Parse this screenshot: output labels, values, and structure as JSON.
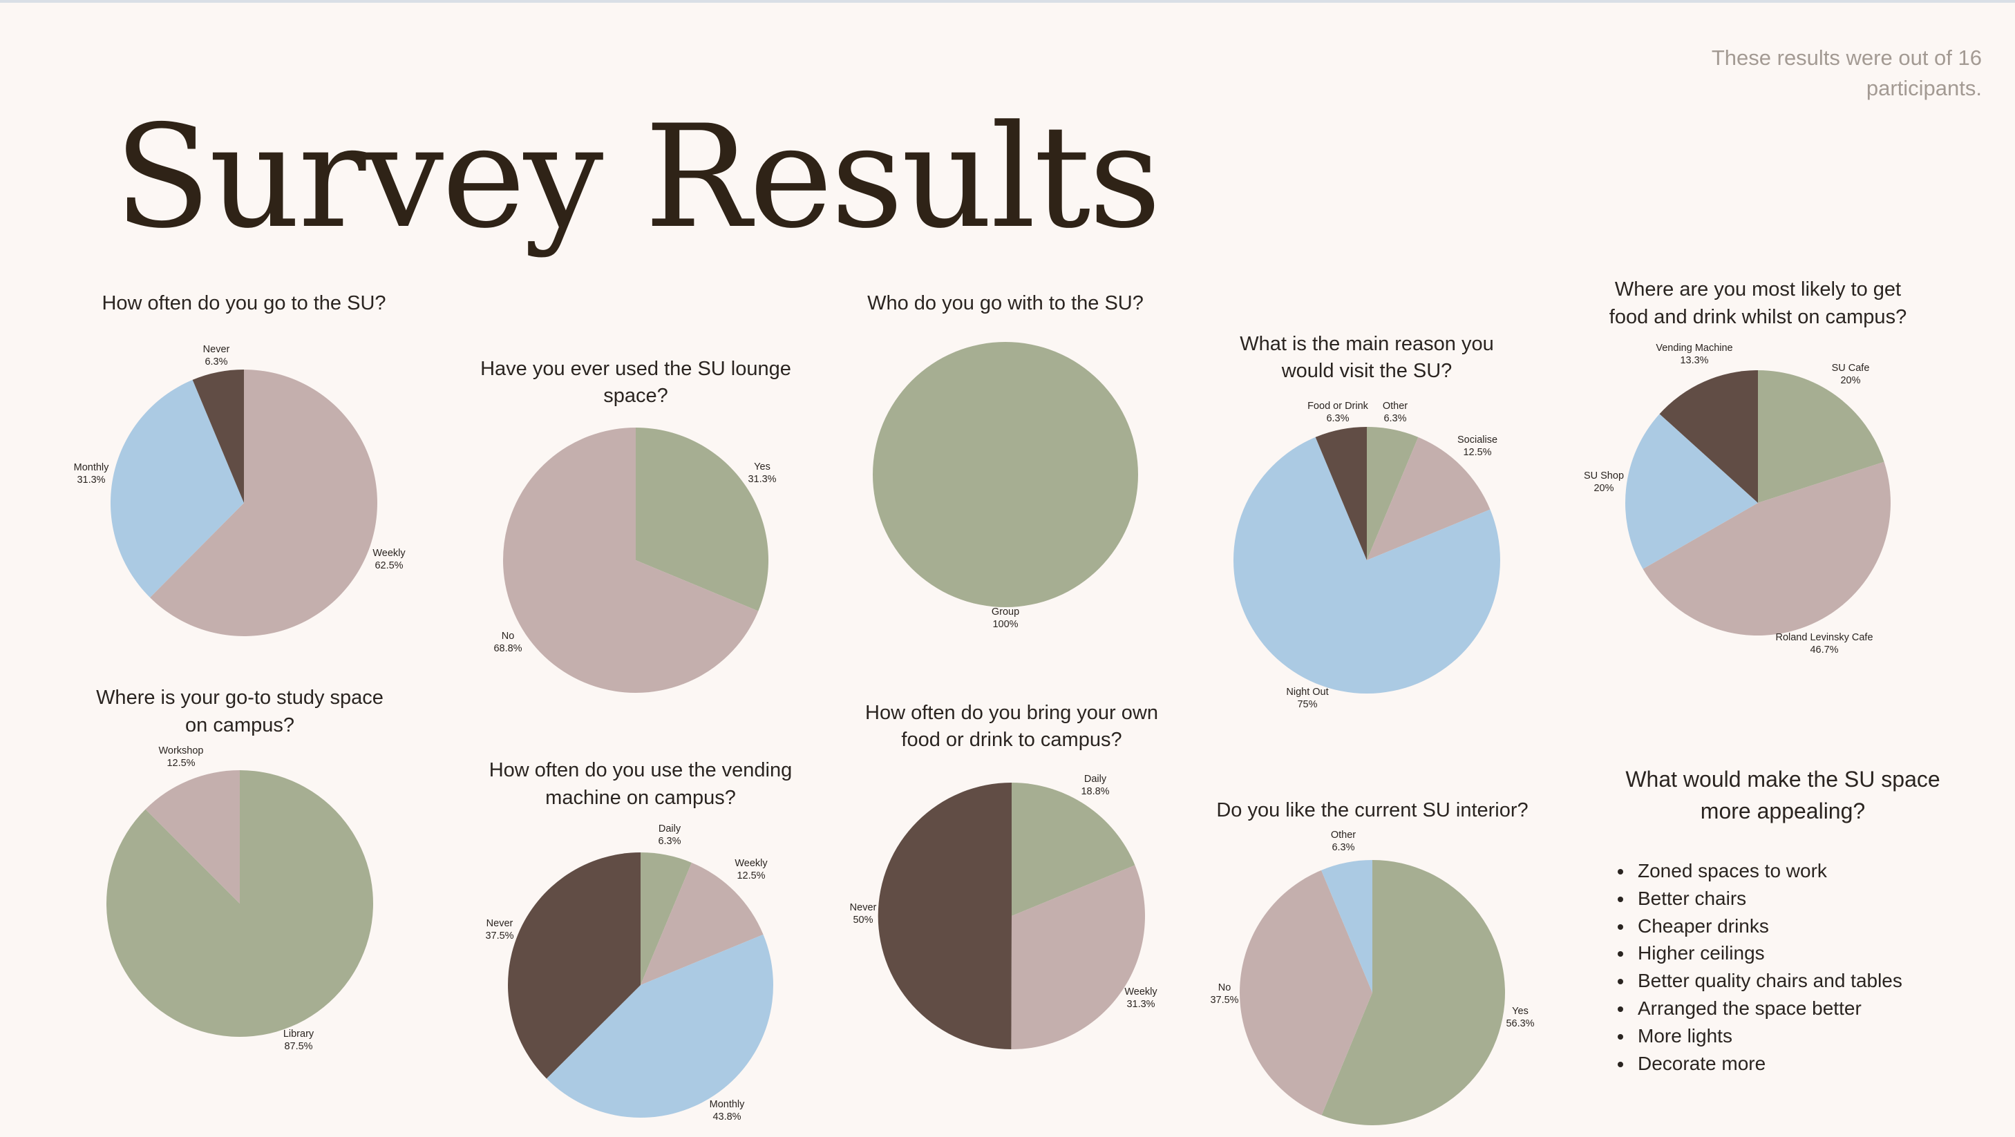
{
  "header": {
    "title": "Survey Results",
    "note": "These results were out of 16 participants."
  },
  "colors": {
    "green": "#a6ae92",
    "pink": "#c4afad",
    "blue": "#abcae3",
    "brown": "#614d45"
  },
  "chart_data": [
    {
      "type": "pie",
      "title": "How often do you go to the SU?",
      "labels": [
        "Weekly",
        "Monthly",
        "Never"
      ],
      "values": [
        62.5,
        31.3,
        6.3
      ],
      "value_labels": [
        "62.5%",
        "31.3%",
        "6.3%"
      ],
      "colors": [
        "pink",
        "blue",
        "brown"
      ]
    },
    {
      "type": "pie",
      "title": "Have you ever used the SU lounge space?",
      "labels": [
        "Yes",
        "No"
      ],
      "values": [
        31.3,
        68.8
      ],
      "value_labels": [
        "31.3%",
        "68.8%"
      ],
      "colors": [
        "green",
        "pink"
      ]
    },
    {
      "type": "pie",
      "title": "Who do you go with to the SU?",
      "labels": [
        "Group"
      ],
      "values": [
        100
      ],
      "value_labels": [
        "100%"
      ],
      "colors": [
        "green"
      ]
    },
    {
      "type": "pie",
      "title": "What is the main reason you would visit the SU?",
      "labels": [
        "Other",
        "Socialise",
        "Night Out",
        "Food or Drink"
      ],
      "values": [
        6.3,
        12.5,
        75,
        6.3
      ],
      "value_labels": [
        "6.3%",
        "12.5%",
        "75%",
        "6.3%"
      ],
      "colors": [
        "green",
        "pink",
        "blue",
        "brown"
      ]
    },
    {
      "type": "pie",
      "title": "Where are you most likely to get food and drink whilst on campus?",
      "labels": [
        "SU Cafe",
        "Roland Levinsky Cafe",
        "SU Shop",
        "Vending Machine"
      ],
      "values": [
        20,
        46.7,
        20,
        13.3
      ],
      "value_labels": [
        "20%",
        "46.7%",
        "20%",
        "13.3%"
      ],
      "colors": [
        "green",
        "pink",
        "blue",
        "brown"
      ]
    },
    {
      "type": "pie",
      "title": "Where is your go-to study space on campus?",
      "labels": [
        "Library",
        "Workshop"
      ],
      "values": [
        87.5,
        12.5
      ],
      "value_labels": [
        "87.5%",
        "12.5%"
      ],
      "colors": [
        "green",
        "pink"
      ]
    },
    {
      "type": "pie",
      "title": "How often do you use the vending machine on campus?",
      "labels": [
        "Daily",
        "Weekly",
        "Monthly",
        "Never"
      ],
      "values": [
        6.3,
        12.5,
        43.8,
        37.5
      ],
      "value_labels": [
        "6.3%",
        "12.5%",
        "43.8%",
        "37.5%"
      ],
      "colors": [
        "green",
        "pink",
        "blue",
        "brown"
      ]
    },
    {
      "type": "pie",
      "title": "How often do you bring your own food or drink to campus?",
      "labels": [
        "Daily",
        "Weekly",
        "Never"
      ],
      "values": [
        18.8,
        31.3,
        50
      ],
      "value_labels": [
        "18.8%",
        "31.3%",
        "50%"
      ],
      "colors": [
        "green",
        "pink",
        "brown"
      ]
    },
    {
      "type": "pie",
      "title": "Do you like the current SU interior?",
      "labels": [
        "Yes",
        "No",
        "Other"
      ],
      "values": [
        56.3,
        37.5,
        6.3
      ],
      "value_labels": [
        "56.3%",
        "37.5%",
        "6.3%"
      ],
      "colors": [
        "green",
        "pink",
        "blue"
      ]
    }
  ],
  "appeal": {
    "title": "What would make the SU space more appealing?",
    "items": [
      "Zoned spaces to work",
      "Better chairs",
      "Cheaper drinks",
      "Higher ceilings",
      "Better quality chairs and tables",
      "Arranged the space better",
      "More lights",
      "Decorate more"
    ]
  }
}
